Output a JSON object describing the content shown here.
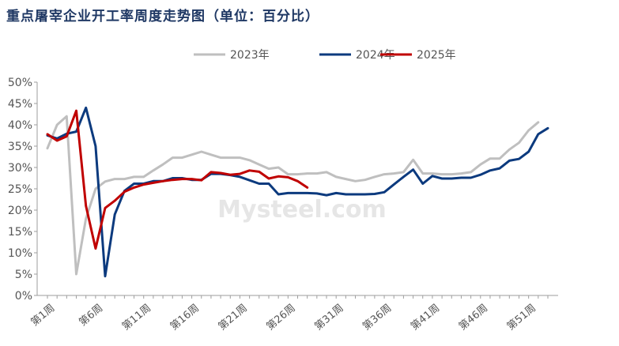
{
  "chart_data": {
    "type": "line",
    "title": "重点屠宰企业开工率周度走势图（单位：百分比）",
    "watermark": "Mysteel.com",
    "xlabel": "",
    "ylabel": "",
    "ylim": [
      0,
      50
    ],
    "y_ticks": [
      "0%",
      "5%",
      "10%",
      "15%",
      "20%",
      "25%",
      "30%",
      "35%",
      "40%",
      "45%",
      "50%"
    ],
    "x_tick_labels": [
      "第1周",
      "第6周",
      "第11周",
      "第16周",
      "第21周",
      "第26周",
      "第31周",
      "第36周",
      "第41周",
      "第46周",
      "第51周"
    ],
    "legend_position": "top-center",
    "grid": false,
    "series": [
      {
        "name": "2023年",
        "color": "#bfbfbf",
        "x": [
          1,
          2,
          3,
          4,
          5,
          6,
          7,
          8,
          9,
          10,
          11,
          12,
          13,
          14,
          15,
          16,
          17,
          18,
          19,
          20,
          21,
          22,
          23,
          24,
          25,
          26,
          27,
          28,
          29,
          30,
          31,
          32,
          33,
          34,
          35,
          36,
          37,
          38,
          39,
          40,
          41,
          42,
          43,
          44,
          45,
          46,
          47,
          48,
          49,
          50,
          51,
          52,
          53
        ],
        "values": [
          34.5,
          40,
          42,
          5,
          18,
          25,
          26.7,
          27.3,
          27.3,
          27.8,
          27.8,
          29.3,
          30.7,
          32.3,
          32.3,
          33,
          33.7,
          33,
          32.3,
          32.3,
          32.3,
          31.7,
          30.7,
          29.7,
          30,
          28.4,
          28.4,
          28.6,
          28.6,
          28.9,
          27.8,
          27.3,
          26.8,
          27.1,
          27.8,
          28.4,
          28.6,
          28.9,
          31.8,
          28.6,
          28.6,
          28.4,
          28.4,
          28.6,
          28.9,
          30.7,
          32.1,
          32.1,
          34.2,
          35.8,
          38.7,
          40.6,
          null
        ]
      },
      {
        "name": "2024年",
        "color": "#0c3a7e",
        "x": [
          1,
          2,
          3,
          4,
          5,
          6,
          7,
          8,
          9,
          10,
          11,
          12,
          13,
          14,
          15,
          16,
          17,
          18,
          19,
          20,
          21,
          22,
          23,
          24,
          25,
          26,
          27,
          28,
          29,
          30,
          31,
          32,
          33,
          34,
          35,
          36,
          37,
          38,
          39,
          40,
          41,
          42,
          43,
          44,
          45,
          46,
          47,
          48,
          49,
          50,
          51,
          52,
          53
        ],
        "values": [
          37.5,
          36.8,
          37.9,
          38.4,
          44,
          35,
          4.5,
          19,
          24.5,
          26.2,
          26.2,
          26.8,
          26.8,
          27.5,
          27.5,
          27.1,
          27.1,
          28.5,
          28.5,
          28.2,
          27.8,
          27,
          26.2,
          26.2,
          23.7,
          24,
          24,
          24,
          23.9,
          23.5,
          24,
          23.7,
          23.7,
          23.7,
          23.8,
          24.2,
          26,
          27.8,
          29.5,
          26.2,
          28,
          27.4,
          27.4,
          27.6,
          27.6,
          28.3,
          29.3,
          29.8,
          31.6,
          32,
          33.7,
          37.8,
          39.2
        ]
      },
      {
        "name": "2025年",
        "color": "#c00000",
        "x": [
          1,
          2,
          3,
          4,
          5,
          6,
          7,
          8,
          9,
          10,
          11,
          12,
          13,
          14,
          15,
          16,
          17,
          18,
          19,
          20,
          21,
          22,
          23,
          24,
          25,
          26,
          27,
          28
        ],
        "values": [
          37.8,
          36.3,
          37.3,
          43.3,
          21,
          11,
          20.5,
          22.2,
          24.3,
          25.3,
          26,
          26.4,
          26.8,
          27.1,
          27.3,
          27.3,
          27,
          28.9,
          28.7,
          28.3,
          28.5,
          29.3,
          29,
          27.4,
          27.9,
          27.7,
          26.8,
          25.3
        ]
      }
    ]
  }
}
